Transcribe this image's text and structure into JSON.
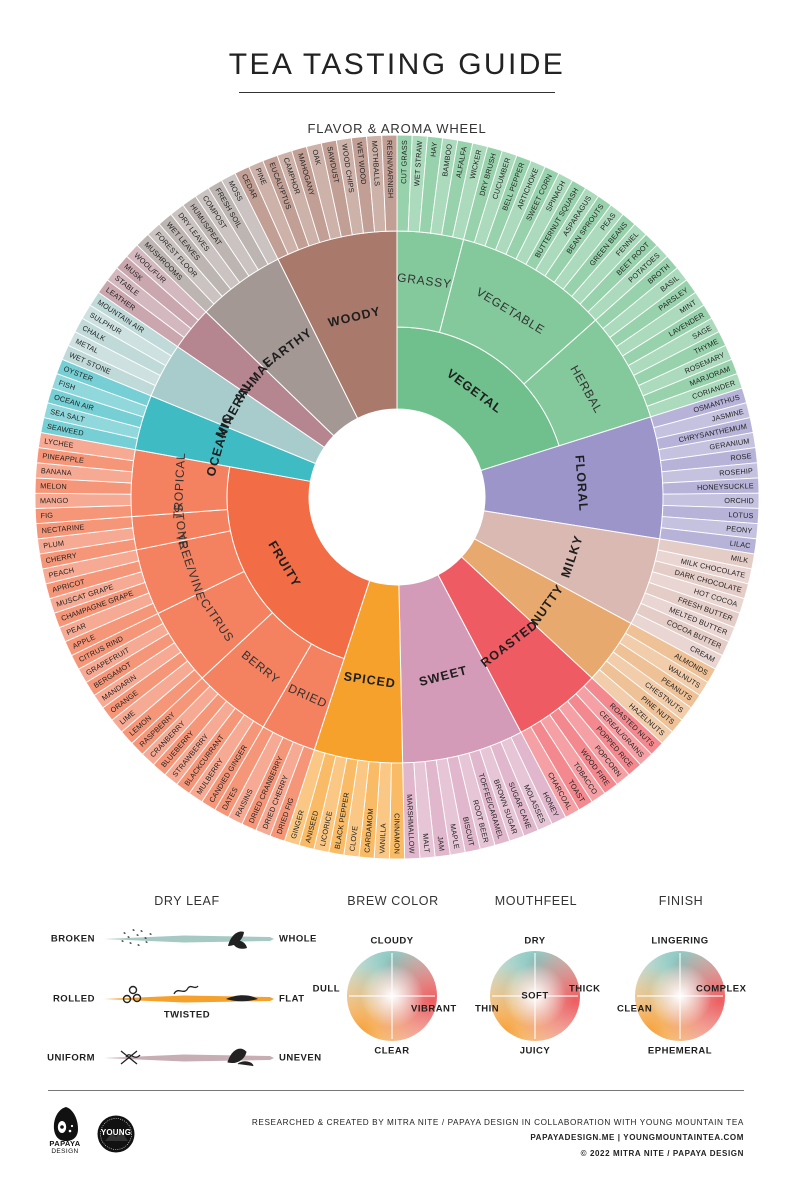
{
  "title": "TEA TASTING GUIDE",
  "subtitle": "FLAVOR & AROMA WHEEL",
  "wheel": {
    "categories": [
      {
        "name": "VEGETAL",
        "color": "#6fc08c",
        "subs": [
          {
            "name": "GRASSY",
            "items": [
              "CUT GRASS",
              "WET STRAW",
              "HAY",
              "BAMBOO",
              "ALFALFA",
              "WICKER"
            ]
          },
          {
            "name": "VEGETABLE",
            "items": [
              "DRY BRUSH",
              "CUCUMBER",
              "BELL PEPPER",
              "ARTICHOKE",
              "SWEET CORN",
              "SPINACH",
              "BUTTERNUT SQUASH",
              "ASPARAGUS",
              "BEAN SPROUTS",
              "PEAS",
              "GREEN BEANS",
              "FENNEL",
              "BEET ROOT",
              "POTATOES"
            ]
          },
          {
            "name": "HERBAL",
            "items": [
              "BROTH",
              "BASIL",
              "PARSLEY",
              "MINT",
              "LAVENDER",
              "SAGE",
              "THYME",
              "ROSEMARY",
              "MARJORAM",
              "CORIANDER"
            ]
          }
        ]
      },
      {
        "name": "FLORAL",
        "color": "#9b95c9",
        "subs": [
          {
            "name": "",
            "items": [
              "OSMANTHUS",
              "JASMINE",
              "CHRYSANTHEMUM",
              "GERANIUM",
              "ROSE",
              "ROSEHIP",
              "HONEYSUCKLE",
              "ORCHID",
              "LOTUS",
              "PEONY",
              "LILAC"
            ]
          }
        ]
      },
      {
        "name": "MILKY",
        "color": "#d9b9b1",
        "subs": [
          {
            "name": "",
            "items": [
              "MILK",
              "MILK CHOCOLATE",
              "DARK CHOCOLATE",
              "HOT COCOA",
              "FRESH BUTTER",
              "MELTED BUTTER",
              "COCOA BUTTER",
              "CREAM"
            ]
          }
        ]
      },
      {
        "name": "NUTTY",
        "color": "#e8a96e",
        "subs": [
          {
            "name": "",
            "items": [
              "ALMONDS",
              "WALNUTS",
              "PEANUTS",
              "CHESTNUTS",
              "PINE NUTS",
              "HAZELNUTS"
            ]
          }
        ]
      },
      {
        "name": "ROASTED",
        "color": "#ee5b63",
        "subs": [
          {
            "name": "",
            "items": [
              "ROASTED NUTS",
              "CEREAL/GRAINS",
              "POPPED RICE",
              "POPCORN",
              "WOOD FIRE",
              "TOBACCO",
              "TOAST",
              "CHARCOAL"
            ]
          }
        ]
      },
      {
        "name": "SWEET",
        "color": "#d49bb8",
        "subs": [
          {
            "name": "",
            "items": [
              "HONEY",
              "MOLASSES",
              "SUGAR CANE",
              "BROWN SUGAR",
              "TOFFEE/CARAMEL",
              "ROOT BEER",
              "BISCUIT",
              "MAPLE",
              "JAM",
              "MALT",
              "MARSHMALLOW"
            ]
          }
        ]
      },
      {
        "name": "SPICED",
        "color": "#f6a12b",
        "subs": [
          {
            "name": "",
            "items": [
              "CINNAMON",
              "VANILLA",
              "CARDAMOM",
              "CLOVE",
              "BLACK PEPPER",
              "LICORICE",
              "ANISEED",
              "GINGER"
            ]
          }
        ]
      },
      {
        "name": "FRUITY",
        "color": "#f26d45",
        "subs": [
          {
            "name": "DRIED",
            "items": [
              "DRIED FIG",
              "DRIED CHERRY",
              "DRIED CRANBERRY",
              "RAISINS",
              "DATES"
            ]
          },
          {
            "name": "BERRY",
            "items": [
              "CANDIED GINGER",
              "MULBERRY",
              "BLACKCURRANT",
              "STRAWBERRY",
              "BLUEBERRY",
              "CRANBERRY",
              "RASPBERRY"
            ]
          },
          {
            "name": "CITRUS",
            "items": [
              "LEMON",
              "LIME",
              "ORANGE",
              "MANDARIN",
              "BERGAMOT",
              "GRAPEFRUIT",
              "CITRUS RIND"
            ]
          },
          {
            "name": "TREE/VINE",
            "items": [
              "APPLE",
              "PEAR",
              "CHAMPAGNE GRAPE",
              "MUSCAT GRAPE",
              "APRICOT",
              "PEACH"
            ]
          },
          {
            "name": "STONE",
            "items": [
              "CHERRY",
              "PLUM",
              "NECTARINE"
            ]
          },
          {
            "name": "TROPICAL",
            "items": [
              "FIG",
              "MANGO",
              "MELON",
              "BANANA",
              "PINEAPPLE",
              "LYCHEE"
            ]
          }
        ]
      },
      {
        "name": "OCEANIC",
        "color": "#3fbcc3",
        "subs": [
          {
            "name": "",
            "items": [
              "SEAWEED",
              "SEA SALT",
              "OCEAN AIR",
              "FISH",
              "OYSTER"
            ]
          }
        ]
      },
      {
        "name": "MINERAL",
        "color": "#a8cccc",
        "subs": [
          {
            "name": "",
            "items": [
              "WET STONE",
              "METAL",
              "CHALK",
              "SULPHUR",
              "MOUNTAIN AIR"
            ]
          }
        ]
      },
      {
        "name": "ANIMAL",
        "color": "#b58590",
        "subs": [
          {
            "name": "",
            "items": [
              "LEATHER",
              "STABLE",
              "MUSK",
              "WOOL/FUR"
            ]
          }
        ]
      },
      {
        "name": "EARTHY",
        "color": "#a49894",
        "subs": [
          {
            "name": "",
            "items": [
              "MUSHROOMS",
              "FOREST FLOOR",
              "WET LEAVES",
              "DRY LEAVES",
              "HUMUS/PEAT",
              "COMPOST",
              "FRESH SOIL",
              "MOSS"
            ]
          }
        ]
      },
      {
        "name": "WOODY",
        "color": "#a97a6c",
        "subs": [
          {
            "name": "",
            "items": [
              "CEDAR",
              "PINE",
              "EUCALYPTUS",
              "CAMPHOR",
              "MAHOGANY",
              "OAK",
              "SAWDUST",
              "WOOD CHIPS",
              "WET WOOD",
              "MOTHBALLS",
              "RESIN/VARNISH"
            ]
          }
        ]
      }
    ]
  },
  "legend": {
    "dry_leaf": {
      "title": "DRY LEAF",
      "scales": [
        {
          "left": "BROKEN",
          "right": "WHOLE",
          "middle": "",
          "color": "#a7c9c3"
        },
        {
          "left": "ROLLED",
          "right": "FLAT",
          "middle": "TWISTED",
          "color": "#f6a12b"
        },
        {
          "left": "UNIFORM",
          "right": "UNEVEN",
          "middle": "",
          "color": "#c7aeb4"
        }
      ]
    },
    "brew_color": {
      "title": "BREW COLOR",
      "top": "CLOUDY",
      "bottom": "CLEAR",
      "left": "DULL",
      "right": "VIBRANT",
      "center": ""
    },
    "mouthfeel": {
      "title": "MOUTHFEEL",
      "top": "DRY",
      "bottom": "JUICY",
      "left": "THIN",
      "right": "THICK",
      "center": "SOFT"
    },
    "finish": {
      "title": "FINISH",
      "top": "LINGERING",
      "bottom": "EPHEMERAL",
      "left": "CLEAN",
      "right": "COMPLEX",
      "center": ""
    }
  },
  "footer": {
    "credit": "RESEARCHED & CREATED BY MITRA NITE / PAPAYA DESIGN IN COLLABORATION WITH YOUNG MOUNTAIN TEA",
    "sites": "PAPAYADESIGN.ME  |  YOUNGMOUNTAINTEA.COM",
    "copyright": "© 2022 MITRA NITE / PAPAYA DESIGN",
    "logo_papaya": "PAPAYA",
    "logo_papaya_sub": "DESIGN",
    "logo_young": "YOUNG"
  }
}
